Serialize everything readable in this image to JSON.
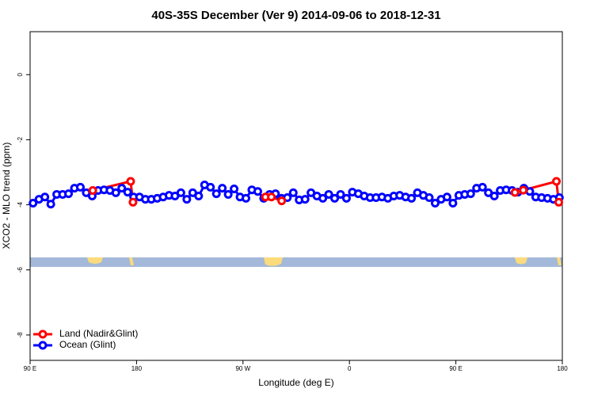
{
  "chart_data": {
    "type": "line",
    "title": "40S-35S December (Ver 9)   2014-09-06 to 2018-12-31",
    "xlabel": "Longitude (deg E)",
    "ylabel": "XCO2 - MLO trend (ppm)",
    "xlim": [
      90,
      540
    ],
    "xticks": [
      {
        "value": 90,
        "label": "90 E"
      },
      180,
      {
        "value": 270,
        "label": "90 W"
      },
      {
        "value": 360,
        "label": "0"
      },
      {
        "value": 450,
        "label": "90 E"
      },
      {
        "value": 540,
        "label": "180"
      }
    ],
    "ylim": [
      -8.78,
      1.32
    ],
    "yticks": [
      -8,
      -6,
      -4,
      -2,
      0
    ],
    "legend": "bottom-left",
    "series": [
      {
        "name": "Land (Nadir&Glint)",
        "color": "#ff0000",
        "x": [
          143,
          175,
          177,
          230,
          289,
          294,
          302.7,
          400,
          500,
          507,
          535,
          537
        ],
        "values": [
          -3.56,
          -3.28,
          -3.92,
          null,
          -3.76,
          -3.76,
          -3.88,
          null,
          -3.62,
          -3.55,
          -3.28,
          -3.92
        ]
      },
      {
        "name": "Ocean (Glint)",
        "color": "#0000ff",
        "x": [
          92.5,
          97.5,
          102.5,
          107.5,
          112.5,
          117.5,
          122.5,
          127.5,
          132.5,
          137.5,
          142.5,
          147.5,
          152.5,
          157.5,
          162.5,
          167.5,
          172.5,
          177.5,
          182.5,
          187.5,
          192.5,
          197.5,
          202.5,
          207.5,
          212.5,
          217.5,
          222.5,
          227.5,
          232.5,
          237.5,
          242.5,
          247.5,
          252.5,
          257.5,
          262.5,
          267.5,
          272.5,
          277.5,
          282.5,
          287.5,
          292.5,
          297.5,
          302.5,
          307.5,
          312.5,
          317.5,
          322.5,
          327.5,
          332.5,
          337.5,
          342.5,
          347.5,
          352.5,
          357.5,
          362.5,
          367.5,
          372.5,
          377.5,
          382.5,
          387.5,
          392.5,
          397.5,
          402.5,
          407.5,
          412.5,
          417.5,
          422.5,
          427.5,
          432.5,
          437.5,
          442.5,
          447.5,
          452.5,
          457.5,
          462.5,
          467.5,
          472.5,
          477.5,
          482.5,
          487.5,
          492.5,
          497.5,
          502.5,
          507.5,
          512.5,
          517.5,
          522.5,
          527.5,
          532.5,
          537.5
        ],
        "values": [
          -3.95,
          -3.83,
          -3.76,
          -3.98,
          -3.68,
          -3.68,
          -3.66,
          -3.49,
          -3.46,
          -3.63,
          -3.73,
          -3.56,
          -3.54,
          -3.56,
          -3.63,
          -3.49,
          -3.61,
          -3.76,
          -3.76,
          -3.83,
          -3.83,
          -3.8,
          -3.76,
          -3.71,
          -3.73,
          -3.63,
          -3.83,
          -3.63,
          -3.73,
          -3.39,
          -3.46,
          -3.66,
          -3.49,
          -3.68,
          -3.51,
          -3.76,
          -3.8,
          -3.54,
          -3.59,
          -3.8,
          -3.68,
          -3.66,
          -3.8,
          -3.78,
          -3.63,
          -3.85,
          -3.83,
          -3.63,
          -3.73,
          -3.8,
          -3.68,
          -3.8,
          -3.68,
          -3.8,
          -3.61,
          -3.66,
          -3.73,
          -3.78,
          -3.78,
          -3.76,
          -3.8,
          -3.73,
          -3.71,
          -3.76,
          -3.8,
          -3.63,
          -3.71,
          -3.78,
          -3.95,
          -3.83,
          -3.76,
          -3.95,
          -3.71,
          -3.68,
          -3.66,
          -3.49,
          -3.46,
          -3.63,
          -3.73,
          -3.56,
          -3.54,
          -3.56,
          -3.61,
          -3.49,
          -3.59,
          -3.76,
          -3.78,
          -3.8,
          -3.83,
          -3.78
        ]
      }
    ]
  }
}
